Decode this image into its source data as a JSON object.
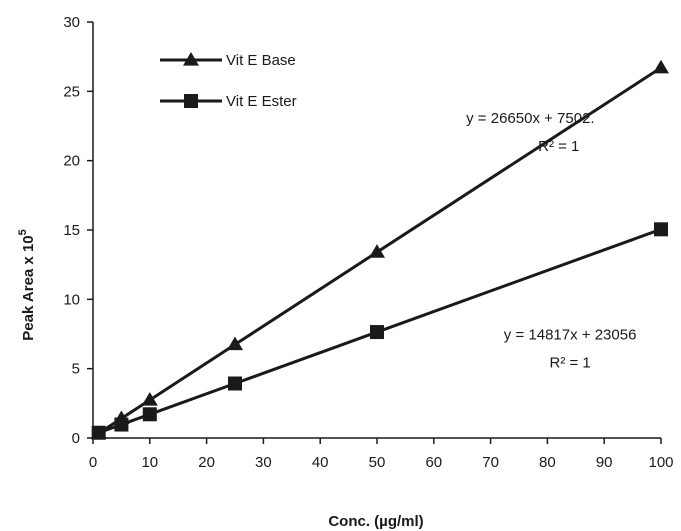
{
  "chart_data": {
    "type": "line",
    "title": "",
    "xlabel": "Conc. (µg/ml)",
    "ylabel": "Peak Area  x 10",
    "ylabel_exponent": "5",
    "xlim": [
      0,
      100
    ],
    "ylim": [
      0,
      30
    ],
    "xticks": [
      0,
      10,
      20,
      30,
      40,
      50,
      60,
      70,
      80,
      90,
      100
    ],
    "yticks": [
      0,
      5,
      10,
      15,
      20,
      25,
      30
    ],
    "grid": false,
    "legend_position": "top-left",
    "series": [
      {
        "name": "Vit E Base",
        "marker": "triangle",
        "color": "#1a1a1a",
        "x": [
          1,
          5,
          10,
          25,
          50,
          100
        ],
        "y": [
          0.34,
          1.41,
          2.74,
          6.74,
          13.4,
          26.7
        ]
      },
      {
        "name": "Vit E Ester",
        "marker": "square",
        "color": "#1a1a1a",
        "x": [
          1,
          5,
          10,
          25,
          50,
          100
        ],
        "y": [
          0.38,
          0.97,
          1.71,
          3.93,
          7.64,
          15.05
        ]
      }
    ],
    "annotations": [
      {
        "text": "y = 26650x + 7502.",
        "x": 77,
        "y": 22.7
      },
      {
        "text": "R² = 1",
        "x": 82,
        "y": 20.7
      },
      {
        "text": "y = 14817x + 23056",
        "x": 84,
        "y": 7.1
      },
      {
        "text": "R² = 1",
        "x": 84,
        "y": 5.1
      }
    ]
  }
}
